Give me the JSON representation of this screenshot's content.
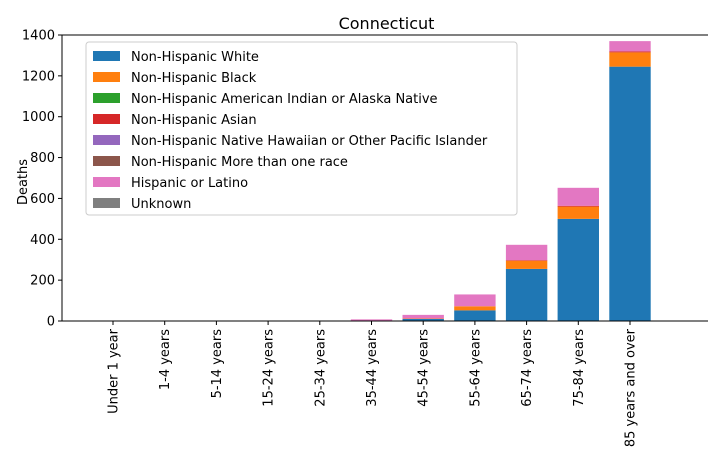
{
  "chart_data": {
    "type": "bar",
    "stacked": true,
    "title": "Connecticut",
    "xlabel": "",
    "ylabel": "Deaths",
    "ylim": [
      0,
      1400
    ],
    "yticks": [
      0,
      200,
      400,
      600,
      800,
      1000,
      1200,
      1400
    ],
    "grid": false,
    "legend_position": "top-left",
    "categories": [
      "Under 1 year",
      "1-4 years",
      "5-14 years",
      "15-24 years",
      "25-34 years",
      "35-44 years",
      "45-54 years",
      "55-64 years",
      "65-74 years",
      "75-84 years",
      "85 years and over"
    ],
    "series": [
      {
        "name": "Non-Hispanic White",
        "color": "#1f77b4",
        "values": [
          0,
          0,
          0,
          0,
          0,
          0,
          10,
          52,
          255,
          500,
          1245
        ]
      },
      {
        "name": "Non-Hispanic Black",
        "color": "#ff7f0e",
        "values": [
          0,
          0,
          0,
          0,
          0,
          0,
          2,
          20,
          40,
          60,
          70
        ]
      },
      {
        "name": "Non-Hispanic American Indian or Alaska Native",
        "color": "#2ca02c",
        "values": [
          0,
          0,
          0,
          0,
          0,
          0,
          0,
          0,
          0,
          0,
          0
        ]
      },
      {
        "name": "Non-Hispanic Asian",
        "color": "#d62728",
        "values": [
          0,
          0,
          0,
          0,
          0,
          0,
          0,
          0,
          3,
          4,
          5
        ]
      },
      {
        "name": "Non-Hispanic Native Hawaiian or Other Pacific Islander",
        "color": "#9467bd",
        "values": [
          0,
          0,
          0,
          0,
          0,
          0,
          0,
          0,
          0,
          0,
          0
        ]
      },
      {
        "name": "Non-Hispanic More than one race",
        "color": "#8c564b",
        "values": [
          0,
          0,
          0,
          0,
          0,
          0,
          0,
          0,
          0,
          0,
          0
        ]
      },
      {
        "name": "Hispanic or Latino",
        "color": "#e377c2",
        "values": [
          0,
          0,
          0,
          0,
          0,
          8,
          18,
          58,
          75,
          88,
          50
        ]
      },
      {
        "name": "Unknown",
        "color": "#7f7f7f",
        "values": [
          0,
          0,
          0,
          0,
          0,
          0,
          0,
          0,
          0,
          0,
          0
        ]
      }
    ]
  }
}
